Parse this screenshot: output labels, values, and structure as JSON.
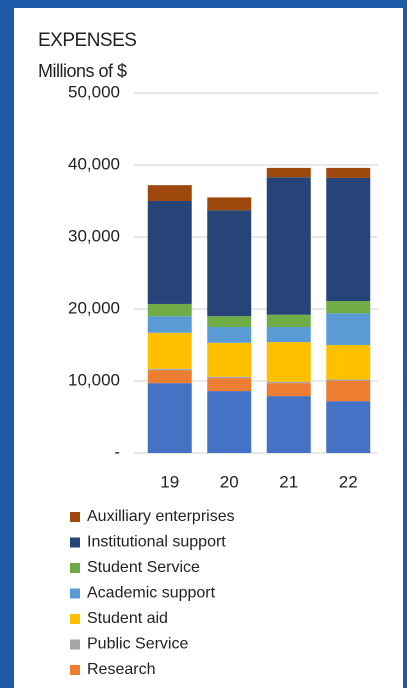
{
  "chart_data": {
    "type": "bar",
    "stacked": true,
    "title": "EXPENSES",
    "subtitle": "Millions of $",
    "categories": [
      "19",
      "20",
      "21",
      "22"
    ],
    "series": [
      {
        "color": "#4472c4",
        "values": [
          9700,
          8600,
          7900,
          7200
        ]
      },
      {
        "name": "Research",
        "color": "#ed7d31",
        "values": [
          1800,
          1800,
          1800,
          2800
        ]
      },
      {
        "name": "Public Service",
        "color": "#a5a5a5",
        "values": [
          200,
          200,
          200,
          200
        ]
      },
      {
        "name": "Student aid",
        "color": "#ffc000",
        "values": [
          5000,
          4700,
          5500,
          4800
        ]
      },
      {
        "name": "Academic support",
        "color": "#5b9bd5",
        "values": [
          2300,
          2200,
          2100,
          4400
        ]
      },
      {
        "name": "Student Service",
        "color": "#70ad47",
        "values": [
          1700,
          1500,
          1700,
          1700
        ]
      },
      {
        "name": "Institutional support",
        "color": "#264478",
        "values": [
          14300,
          14700,
          19100,
          17100
        ]
      },
      {
        "name": "Auxilliary enterprises",
        "color": "#9e480e",
        "values": [
          2200,
          1800,
          1300,
          1400
        ]
      }
    ],
    "ylim": [
      0,
      50000
    ],
    "yticks": [
      {
        "value": 0,
        "label": "-"
      },
      {
        "value": 10000,
        "label": "10,000"
      },
      {
        "value": 20000,
        "label": "20,000"
      },
      {
        "value": 30000,
        "label": "30,000"
      },
      {
        "value": 40000,
        "label": "40,000"
      },
      {
        "value": 50000,
        "label": "50,000"
      }
    ],
    "grid": true
  }
}
